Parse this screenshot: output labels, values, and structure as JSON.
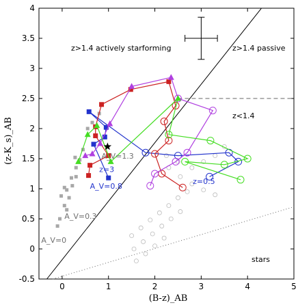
{
  "chart_data": {
    "type": "scatter",
    "xlabel": "(B-z)_AB",
    "ylabel": "(z-K_s)_AB",
    "xlim": [
      -0.5,
      5
    ],
    "ylim": [
      -0.5,
      4
    ],
    "xticks": [
      "0",
      "1",
      "2",
      "3",
      "4",
      "5"
    ],
    "yticks": [
      "-0.5",
      "0",
      "0.5",
      "1",
      "1.5",
      "2",
      "2.5",
      "3",
      "3.5",
      "4"
    ],
    "xtick_values": [
      0,
      1,
      2,
      3,
      4,
      5
    ],
    "ytick_values": [
      -0.5,
      0,
      0.5,
      1,
      1.5,
      2,
      2.5,
      3,
      3.5,
      4
    ],
    "regions": {
      "star_forming": "z>1.4 actively starforming",
      "passive": "z>1.4 passive",
      "low_z": "z<1.4",
      "stars": "stars"
    },
    "boundaries": {
      "diagonal": {
        "x": [
          -0.33,
          4.3
        ],
        "y": [
          -0.5,
          4
        ]
      },
      "horizontal_dashed": {
        "x": [
          2.5,
          5.0
        ],
        "y": [
          2.5,
          2.5
        ]
      },
      "stellar_dotted": {
        "x": [
          -0.2,
          5.0
        ],
        "y": [
          -0.5,
          0.7
        ]
      }
    },
    "error_bar": {
      "x": 3.0,
      "y": 3.5,
      "dx": 0.35,
      "dy": 0.35
    },
    "annotations": [
      {
        "text": "A_V=0",
        "x": -0.45,
        "y": 0.1,
        "color": "#707070"
      },
      {
        "text": "A_V=0.3",
        "x": 0.05,
        "y": 0.5,
        "color": "#707070"
      },
      {
        "text": "A_V=0.8",
        "x": 0.6,
        "y": 1.0,
        "color": "#2233cc"
      },
      {
        "text": "z=3",
        "x": 0.8,
        "y": 1.28,
        "color": "#2233cc"
      },
      {
        "text": "A_V=1.3",
        "x": 0.85,
        "y": 1.5,
        "color": "#707070"
      },
      {
        "text": "z=0.5",
        "x": 2.82,
        "y": 1.08,
        "color": "#2233cc"
      }
    ],
    "star_marker": {
      "x": 0.98,
      "y": 1.7
    },
    "series": [
      {
        "color": "#2233cc",
        "highz_marker": "square",
        "highz": [
          [
            1.0,
            1.18
          ],
          [
            0.68,
            1.74
          ],
          [
            0.92,
            1.86
          ],
          [
            0.95,
            2.02
          ],
          [
            0.58,
            2.28
          ]
        ],
        "lowz": [
          [
            1.8,
            1.6
          ],
          [
            2.5,
            1.55
          ],
          [
            3.6,
            1.6
          ],
          [
            3.8,
            1.45
          ],
          [
            3.18,
            1.2
          ]
        ]
      },
      {
        "color": "#cc2222",
        "highz_marker": "square",
        "highz": [
          [
            0.57,
            1.22
          ],
          [
            0.6,
            1.39
          ],
          [
            1.0,
            1.55
          ],
          [
            0.72,
            1.88
          ],
          [
            0.72,
            2.03
          ],
          [
            0.85,
            2.4
          ],
          [
            1.48,
            2.65
          ],
          [
            2.3,
            2.78
          ]
        ],
        "lowz": [
          [
            2.45,
            2.38
          ],
          [
            2.2,
            2.12
          ],
          [
            2.3,
            1.8
          ],
          [
            2.0,
            1.58
          ],
          [
            2.15,
            1.25
          ],
          [
            2.6,
            1.02
          ]
        ]
      },
      {
        "color": "#b040e0",
        "highz_marker": "triangle",
        "highz": [
          [
            0.5,
            1.55
          ],
          [
            0.65,
            1.58
          ],
          [
            0.82,
            1.75
          ],
          [
            1.03,
            2.08
          ],
          [
            1.5,
            2.7
          ],
          [
            2.35,
            2.85
          ]
        ],
        "lowz": [
          [
            2.5,
            2.5
          ],
          [
            3.25,
            2.3
          ],
          [
            2.7,
            1.6
          ],
          [
            2.45,
            1.45
          ],
          [
            2.0,
            1.25
          ],
          [
            1.9,
            1.05
          ]
        ]
      },
      {
        "color": "#44dd22",
        "highz_marker": "triangle",
        "highz": [
          [
            0.35,
            1.45
          ],
          [
            0.55,
            1.9
          ],
          [
            0.75,
            2.05
          ],
          [
            1.05,
            1.45
          ],
          [
            2.5,
            2.5
          ]
        ],
        "lowz": [
          [
            2.3,
            1.9
          ],
          [
            3.2,
            1.8
          ],
          [
            4.0,
            1.5
          ],
          [
            3.5,
            1.4
          ],
          [
            2.65,
            1.45
          ],
          [
            3.85,
            1.15
          ]
        ]
      }
    ],
    "gray_squares": [
      [
        -0.1,
        0.38
      ],
      [
        -0.05,
        0.5
      ],
      [
        0.05,
        0.72
      ],
      [
        -0.02,
        0.88
      ],
      [
        0.1,
        0.98
      ],
      [
        0.05,
        1.02
      ],
      [
        0.2,
        1.18
      ],
      [
        0.3,
        1.35
      ],
      [
        0.28,
        1.52
      ],
      [
        0.3,
        1.2
      ],
      [
        0.15,
        0.85
      ],
      [
        0.1,
        0.65
      ],
      [
        0.22,
        1.05
      ],
      [
        0.38,
        1.48
      ],
      [
        0.45,
        1.65
      ],
      [
        0.55,
        2.0
      ],
      [
        0.65,
        2.1
      ],
      [
        0.8,
        2.25
      ]
    ],
    "gray_circles": [
      [
        2.25,
        1.55
      ],
      [
        2.5,
        1.45
      ],
      [
        2.8,
        1.35
      ],
      [
        3.05,
        1.45
      ],
      [
        3.3,
        1.55
      ],
      [
        3.5,
        1.7
      ],
      [
        2.3,
        1.35
      ],
      [
        2.55,
        1.2
      ],
      [
        2.8,
        1.08
      ],
      [
        3.05,
        0.98
      ],
      [
        3.3,
        0.9
      ],
      [
        1.5,
        0.22
      ],
      [
        1.7,
        0.35
      ],
      [
        1.9,
        0.48
      ],
      [
        2.1,
        0.6
      ],
      [
        2.3,
        0.72
      ],
      [
        2.5,
        0.85
      ],
      [
        2.7,
        0.95
      ],
      [
        1.55,
        0.0
      ],
      [
        1.75,
        0.12
      ],
      [
        1.95,
        0.25
      ],
      [
        2.15,
        0.38
      ],
      [
        2.35,
        0.5
      ],
      [
        2.55,
        0.62
      ],
      [
        1.6,
        -0.2
      ],
      [
        1.8,
        -0.08
      ],
      [
        2.0,
        0.05
      ],
      [
        2.2,
        0.18
      ]
    ]
  }
}
